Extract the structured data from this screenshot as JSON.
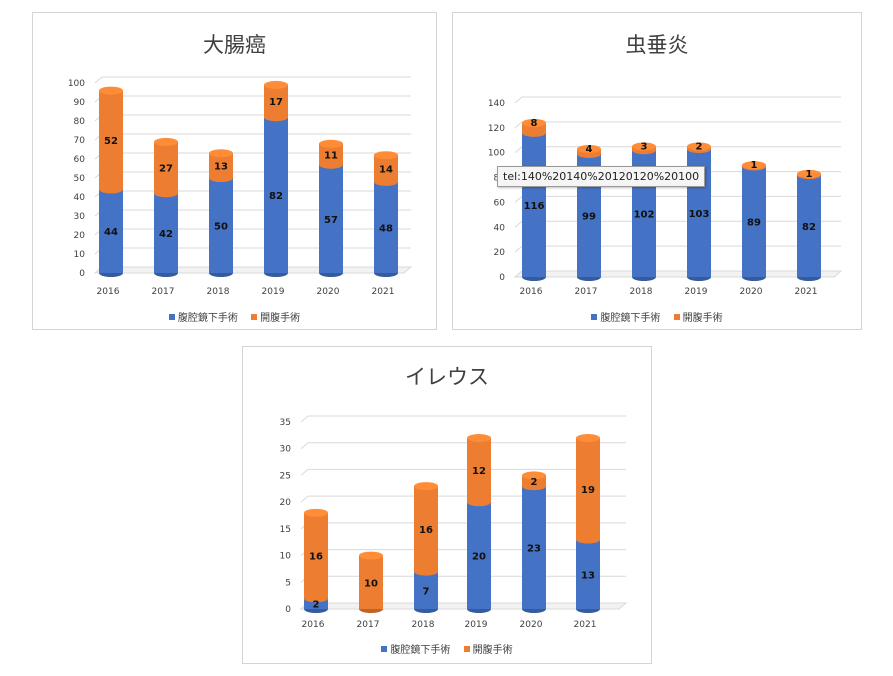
{
  "colors": {
    "blue": "#4472C4",
    "orange": "#ED7D31"
  },
  "legend": {
    "laparoscopic": "腹腔鏡下手術",
    "open": "開腹手術"
  },
  "tooltip": {
    "text": "tel:140%20140%20120120%20100"
  },
  "chart_data": [
    {
      "type": "bar",
      "stacked": true,
      "title": "大腸癌",
      "categories": [
        "2016",
        "2017",
        "2018",
        "2019",
        "2020",
        "2021"
      ],
      "series": [
        {
          "name": "腹腔鏡下手術",
          "values": [
            44,
            42,
            50,
            82,
            57,
            48
          ]
        },
        {
          "name": "開腹手術",
          "values": [
            52,
            27,
            13,
            17,
            11,
            14
          ]
        }
      ],
      "yticks": [
        "0",
        "10",
        "20",
        "30",
        "40",
        "50",
        "60",
        "70",
        "80",
        "90",
        "100"
      ],
      "ylim": [
        0,
        100
      ],
      "grid": true,
      "legend_position": "bottom"
    },
    {
      "type": "bar",
      "stacked": true,
      "title": "虫垂炎",
      "categories": [
        "2016",
        "2017",
        "2018",
        "2019",
        "2020",
        "2021"
      ],
      "series": [
        {
          "name": "腹腔鏡下手術",
          "values": [
            116,
            99,
            102,
            103,
            89,
            82
          ]
        },
        {
          "name": "開腹手術",
          "values": [
            8,
            4,
            3,
            2,
            1,
            1
          ]
        }
      ],
      "yticks": [
        "0",
        "20",
        "40",
        "60",
        "80",
        "100",
        "120",
        "140"
      ],
      "ylim": [
        0,
        140
      ],
      "grid": true,
      "legend_position": "bottom"
    },
    {
      "type": "bar",
      "stacked": true,
      "title": "イレウス",
      "categories": [
        "2016",
        "2017",
        "2018",
        "2019",
        "2020",
        "2021"
      ],
      "series": [
        {
          "name": "腹腔鏡下手術",
          "values": [
            2,
            0,
            7,
            20,
            23,
            13
          ]
        },
        {
          "name": "開腹手術",
          "values": [
            16,
            10,
            16,
            12,
            2,
            19
          ]
        }
      ],
      "yticks": [
        "0",
        "5",
        "10",
        "15",
        "20",
        "25",
        "30",
        "35"
      ],
      "ylim": [
        0,
        35
      ],
      "grid": true,
      "legend_position": "bottom"
    }
  ]
}
